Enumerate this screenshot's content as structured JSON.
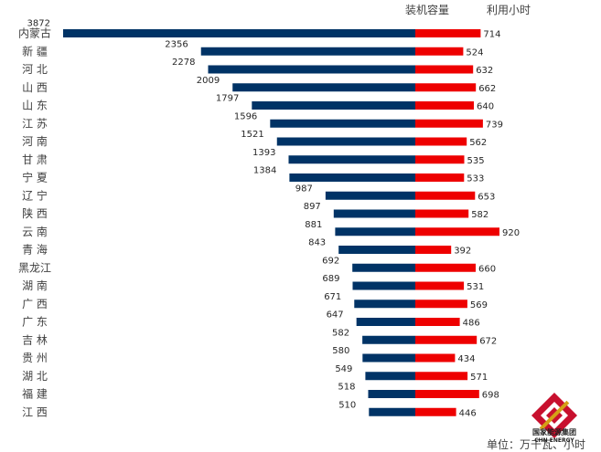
{
  "chart_data": {
    "type": "bar",
    "title": "",
    "unit": "单位：万千瓦、小时",
    "categories": [
      "内蒙古",
      "新 疆",
      "河 北",
      "山 西",
      "山 东",
      "江 苏",
      "河 南",
      "甘 肃",
      "宁 夏",
      "辽 宁",
      "陕 西",
      "云 南",
      "青 海",
      "黑龙江",
      "湖 南",
      "广 西",
      "广 东",
      "吉 林",
      "贵 州",
      "湖 北",
      "福 建",
      "江 西"
    ],
    "series": [
      {
        "name": "装机容量",
        "color": "#003366",
        "values": [
          3872,
          2356,
          2278,
          2009,
          1797,
          1596,
          1521,
          1393,
          1384,
          987,
          897,
          881,
          843,
          692,
          689,
          671,
          647,
          582,
          580,
          549,
          518,
          510
        ]
      },
      {
        "name": "利用小时",
        "color": "#ee0000",
        "values": [
          714,
          524,
          632,
          662,
          640,
          739,
          562,
          535,
          533,
          653,
          582,
          920,
          392,
          660,
          531,
          569,
          486,
          672,
          434,
          571,
          698,
          446
        ]
      }
    ]
  },
  "logo": {
    "company_name": "国家能源集团",
    "company_name_en": "CHN ENERGY"
  }
}
